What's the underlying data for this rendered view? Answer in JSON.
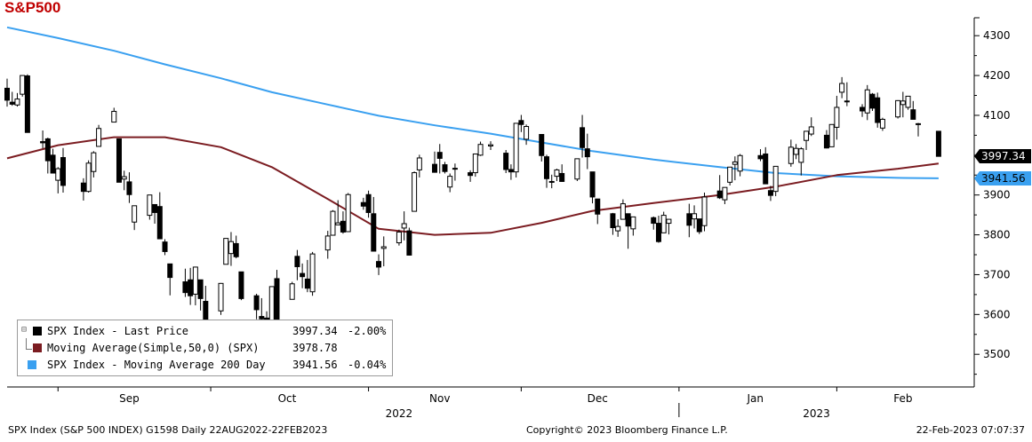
{
  "title": "S&P500",
  "footer": {
    "left": "SPX Index (S&P 500 INDEX) G1598  Daily 22AUG2022-22FEB2023",
    "center": "Copyright© 2023 Bloomberg Finance L.P.",
    "right": "22-Feb-2023 07:07:37"
  },
  "legend": [
    {
      "name": "SPX Index - Last Price",
      "value": "3997.34",
      "change": "-2.00%",
      "color": "#000000"
    },
    {
      "name": "Moving Average(Simple,50,0) (SPX)",
      "value": "3978.78",
      "change": "",
      "color": "#7b1c21"
    },
    {
      "name": "SPX Index - Moving Average 200 Day",
      "value": "3941.56",
      "change": "-0.04%",
      "color": "#3aa0f0"
    }
  ],
  "colors": {
    "title": "#c00000",
    "ma50": "#7b1c21",
    "ma200": "#3aa0f0",
    "up_fill": "#ffffff",
    "down_fill": "#000000"
  },
  "chart_data": {
    "type": "line",
    "subtype": "candlestick with moving averages",
    "y_ticks": [
      "3500",
      "3600",
      "3700",
      "3800",
      "3900",
      "4000",
      "4100",
      "4200",
      "4300"
    ],
    "ylim": [
      3418,
      4345
    ],
    "x_month_labels": [
      "Sep",
      "Oct",
      "Nov",
      "Dec",
      "Jan",
      "Feb"
    ],
    "x_year_labels": [
      "2022",
      "2023"
    ],
    "last_value_tags": [
      {
        "series": "SPX Index - Last Price",
        "value": "3997.34"
      },
      {
        "series": "SPX Index - Moving Average 200 Day",
        "value": "3941.56"
      }
    ],
    "grid": false,
    "legend_position": "bottom-left",
    "candles": [
      [
        "2022-08-22",
        4168,
        4192,
        4122,
        4138
      ],
      [
        "2022-08-23",
        4133,
        4159,
        4124,
        4128
      ],
      [
        "2022-08-24",
        4126,
        4156,
        4122,
        4141
      ],
      [
        "2022-08-25",
        4153,
        4200,
        4147,
        4200
      ],
      [
        "2022-08-26",
        4199,
        4203,
        4057,
        4057
      ],
      [
        "2022-08-29",
        4034,
        4062,
        4017,
        4031
      ],
      [
        "2022-08-30",
        4041,
        4044,
        3954,
        3986
      ],
      [
        "2022-08-31",
        4000,
        4016,
        3955,
        3955
      ],
      [
        "2022-09-01",
        3937,
        3970,
        3904,
        3966
      ],
      [
        "2022-09-02",
        3994,
        4018,
        3906,
        3924
      ],
      [
        "2022-09-06",
        3930,
        3942,
        3886,
        3909
      ],
      [
        "2022-09-07",
        3909,
        3987,
        3906,
        3980
      ],
      [
        "2022-09-08",
        3959,
        4010,
        3944,
        4006
      ],
      [
        "2022-09-09",
        4022,
        4076,
        4022,
        4067
      ],
      [
        "2022-09-12",
        4083,
        4119,
        4083,
        4110
      ],
      [
        "2022-09-13",
        4041,
        4041,
        3932,
        3932
      ],
      [
        "2022-09-14",
        3940,
        3961,
        3912,
        3946
      ],
      [
        "2022-09-15",
        3933,
        3957,
        3880,
        3901
      ],
      [
        "2022-09-16",
        3832,
        3870,
        3812,
        3873
      ],
      [
        "2022-09-19",
        3849,
        3900,
        3838,
        3900
      ],
      [
        "2022-09-20",
        3876,
        3877,
        3828,
        3856
      ],
      [
        "2022-09-21",
        3871,
        3907,
        3789,
        3790
      ],
      [
        "2022-09-22",
        3782,
        3789,
        3749,
        3758
      ],
      [
        "2022-09-23",
        3727,
        3727,
        3648,
        3693
      ],
      [
        "2022-09-26",
        3682,
        3715,
        3644,
        3655
      ],
      [
        "2022-09-27",
        3687,
        3717,
        3624,
        3647
      ],
      [
        "2022-09-28",
        3651,
        3720,
        3623,
        3719
      ],
      [
        "2022-09-29",
        3687,
        3687,
        3610,
        3640
      ],
      [
        "2022-09-30",
        3633,
        3672,
        3584,
        3586
      ],
      [
        "2022-10-03",
        3609,
        3679,
        3599,
        3678
      ],
      [
        "2022-10-04",
        3726,
        3791,
        3726,
        3791
      ],
      [
        "2022-10-05",
        3753,
        3807,
        3722,
        3783
      ],
      [
        "2022-10-06",
        3778,
        3798,
        3741,
        3745
      ],
      [
        "2022-10-07",
        3707,
        3707,
        3636,
        3640
      ],
      [
        "2022-10-10",
        3647,
        3652,
        3588,
        3612
      ],
      [
        "2022-10-11",
        3595,
        3641,
        3569,
        3589
      ],
      [
        "2022-10-12",
        3591,
        3608,
        3577,
        3577
      ],
      [
        "2022-10-13",
        3520,
        3670,
        3492,
        3670
      ],
      [
        "2022-10-14",
        3690,
        3712,
        3583,
        3583
      ],
      [
        "2022-10-17",
        3638,
        3682,
        3638,
        3677
      ],
      [
        "2022-10-18",
        3746,
        3762,
        3686,
        3720
      ],
      [
        "2022-10-19",
        3703,
        3728,
        3666,
        3695
      ],
      [
        "2022-10-20",
        3689,
        3737,
        3656,
        3666
      ],
      [
        "2022-10-21",
        3657,
        3757,
        3647,
        3752
      ],
      [
        "2022-10-24",
        3762,
        3810,
        3740,
        3797
      ],
      [
        "2022-10-25",
        3799,
        3862,
        3799,
        3859
      ],
      [
        "2022-10-26",
        3825,
        3887,
        3825,
        3830
      ],
      [
        "2022-10-27",
        3834,
        3859,
        3803,
        3807
      ],
      [
        "2022-10-28",
        3808,
        3905,
        3808,
        3901
      ],
      [
        "2022-10-31",
        3881,
        3893,
        3863,
        3872
      ],
      [
        "2022-11-01",
        3901,
        3911,
        3843,
        3856
      ],
      [
        "2022-11-02",
        3853,
        3895,
        3759,
        3759
      ],
      [
        "2022-11-03",
        3733,
        3751,
        3699,
        3719
      ],
      [
        "2022-11-04",
        3766,
        3796,
        3721,
        3770
      ],
      [
        "2022-11-07",
        3780,
        3813,
        3773,
        3807
      ],
      [
        "2022-11-08",
        3817,
        3859,
        3786,
        3828
      ],
      [
        "2022-11-09",
        3810,
        3818,
        3748,
        3749
      ],
      [
        "2022-11-10",
        3859,
        3959,
        3859,
        3956
      ],
      [
        "2022-11-11",
        3963,
        4001,
        3944,
        3993
      ],
      [
        "2022-11-14",
        3977,
        4009,
        3956,
        3957
      ],
      [
        "2022-11-15",
        4007,
        4028,
        3954,
        3992
      ],
      [
        "2022-11-16",
        3976,
        3983,
        3954,
        3959
      ],
      [
        "2022-11-17",
        3920,
        3954,
        3907,
        3947
      ],
      [
        "2022-11-18",
        3967,
        3979,
        3936,
        3965
      ],
      [
        "2022-11-21",
        3956,
        3962,
        3933,
        3949
      ],
      [
        "2022-11-22",
        3956,
        4004,
        3946,
        4003
      ],
      [
        "2022-11-23",
        4000,
        4034,
        3998,
        4027
      ],
      [
        "2022-11-25",
        4023,
        4035,
        4013,
        4026
      ],
      [
        "2022-11-28",
        4005,
        4013,
        3955,
        3964
      ],
      [
        "2022-11-29",
        3964,
        3977,
        3938,
        3958
      ],
      [
        "2022-11-30",
        3958,
        4080,
        3944,
        4080
      ],
      [
        "2022-12-01",
        4087,
        4101,
        4058,
        4077
      ],
      [
        "2022-12-02",
        4040,
        4077,
        4026,
        4072
      ],
      [
        "2022-12-05",
        4052,
        4052,
        3984,
        3999
      ],
      [
        "2022-12-06",
        3996,
        4001,
        3918,
        3941
      ],
      [
        "2022-12-07",
        3934,
        3951,
        3917,
        3933
      ],
      [
        "2022-12-08",
        3947,
        3966,
        3935,
        3963
      ],
      [
        "2022-12-09",
        3954,
        3977,
        3933,
        3934
      ],
      [
        "2022-12-12",
        3940,
        3991,
        3935,
        3991
      ],
      [
        "2022-12-13",
        4069,
        4101,
        3994,
        4019
      ],
      [
        "2022-12-14",
        4016,
        4054,
        3965,
        3996
      ],
      [
        "2022-12-15",
        3958,
        3958,
        3879,
        3895
      ],
      [
        "2022-12-16",
        3890,
        3890,
        3827,
        3852
      ],
      [
        "2022-12-19",
        3853,
        3855,
        3800,
        3818
      ],
      [
        "2022-12-20",
        3810,
        3839,
        3795,
        3821
      ],
      [
        "2022-12-21",
        3839,
        3889,
        3839,
        3878
      ],
      [
        "2022-12-22",
        3853,
        3853,
        3765,
        3822
      ],
      [
        "2022-12-23",
        3815,
        3845,
        3798,
        3845
      ],
      [
        "2022-12-27",
        3843,
        3846,
        3813,
        3829
      ],
      [
        "2022-12-28",
        3829,
        3848,
        3780,
        3783
      ],
      [
        "2022-12-29",
        3805,
        3858,
        3805,
        3849
      ],
      [
        "2022-12-30",
        3829,
        3839,
        3801,
        3839
      ],
      [
        "2023-01-03",
        3853,
        3878,
        3794,
        3824
      ],
      [
        "2023-01-04",
        3840,
        3874,
        3816,
        3853
      ],
      [
        "2023-01-05",
        3840,
        3840,
        3802,
        3808
      ],
      [
        "2023-01-06",
        3823,
        3906,
        3809,
        3895
      ],
      [
        "2023-01-09",
        3910,
        3950,
        3890,
        3893
      ],
      [
        "2023-01-10",
        3888,
        3919,
        3877,
        3919
      ],
      [
        "2023-01-11",
        3932,
        3970,
        3924,
        3970
      ],
      [
        "2023-01-12",
        3977,
        3997,
        3937,
        3983
      ],
      [
        "2023-01-13",
        3960,
        4003,
        3947,
        3999
      ],
      [
        "2023-01-17",
        3999,
        4015,
        3985,
        3991
      ],
      [
        "2023-01-18",
        4003,
        4020,
        3928,
        3928
      ],
      [
        "2023-01-19",
        3911,
        3923,
        3885,
        3899
      ],
      [
        "2023-01-20",
        3909,
        3972,
        3897,
        3972
      ],
      [
        "2023-01-23",
        3979,
        4039,
        3971,
        4020
      ],
      [
        "2023-01-24",
        4002,
        4028,
        3990,
        4017
      ],
      [
        "2023-01-25",
        3982,
        4020,
        3949,
        4016
      ],
      [
        "2023-01-26",
        4037,
        4060,
        4013,
        4060
      ],
      [
        "2023-01-27",
        4053,
        4095,
        4048,
        4071
      ],
      [
        "2023-01-30",
        4050,
        4063,
        4017,
        4018
      ],
      [
        "2023-01-31",
        4021,
        4077,
        4021,
        4077
      ],
      [
        "2023-02-01",
        4070,
        4149,
        4039,
        4120
      ],
      [
        "2023-02-02",
        4158,
        4196,
        4143,
        4180
      ],
      [
        "2023-02-03",
        4136,
        4183,
        4123,
        4136
      ],
      [
        "2023-02-06",
        4120,
        4128,
        4096,
        4111
      ],
      [
        "2023-02-07",
        4106,
        4176,
        4088,
        4164
      ],
      [
        "2023-02-08",
        4153,
        4156,
        4111,
        4118
      ],
      [
        "2023-02-09",
        4144,
        4157,
        4069,
        4082
      ],
      [
        "2023-02-10",
        4068,
        4094,
        4061,
        4090
      ],
      [
        "2023-02-13",
        4096,
        4138,
        4092,
        4137
      ],
      [
        "2023-02-14",
        4127,
        4159,
        4095,
        4136
      ],
      [
        "2023-02-15",
        4120,
        4148,
        4114,
        4148
      ],
      [
        "2023-02-16",
        4114,
        4136,
        4090,
        4090
      ],
      [
        "2023-02-17",
        4077,
        4081,
        4047,
        4079
      ],
      [
        "2023-02-21",
        4060,
        4060,
        3997,
        3997
      ]
    ],
    "ma50": [
      [
        "2022-08-22",
        3992
      ],
      [
        "2022-09-01",
        4025
      ],
      [
        "2022-09-12",
        4045
      ],
      [
        "2022-09-22",
        4045
      ],
      [
        "2022-10-03",
        4020
      ],
      [
        "2022-10-13",
        3970
      ],
      [
        "2022-10-24",
        3890
      ],
      [
        "2022-11-03",
        3815
      ],
      [
        "2022-11-14",
        3800
      ],
      [
        "2022-11-25",
        3805
      ],
      [
        "2022-12-05",
        3830
      ],
      [
        "2022-12-15",
        3860
      ],
      [
        "2022-12-27",
        3880
      ],
      [
        "2023-01-09",
        3900
      ],
      [
        "2023-01-20",
        3921
      ],
      [
        "2023-02-01",
        3950
      ],
      [
        "2023-02-13",
        3966
      ],
      [
        "2023-02-21",
        3979
      ]
    ],
    "ma200": [
      [
        "2022-08-22",
        4321
      ],
      [
        "2022-09-01",
        4294
      ],
      [
        "2022-09-12",
        4262
      ],
      [
        "2022-09-22",
        4228
      ],
      [
        "2022-10-03",
        4193
      ],
      [
        "2022-10-13",
        4158
      ],
      [
        "2022-10-24",
        4127
      ],
      [
        "2022-11-03",
        4099
      ],
      [
        "2022-11-14",
        4075
      ],
      [
        "2022-11-25",
        4054
      ],
      [
        "2022-12-05",
        4032
      ],
      [
        "2022-12-15",
        4010
      ],
      [
        "2022-12-27",
        3989
      ],
      [
        "2023-01-09",
        3970
      ],
      [
        "2023-01-20",
        3955
      ],
      [
        "2023-02-01",
        3947
      ],
      [
        "2023-02-13",
        3943
      ],
      [
        "2023-02-21",
        3942
      ]
    ]
  }
}
